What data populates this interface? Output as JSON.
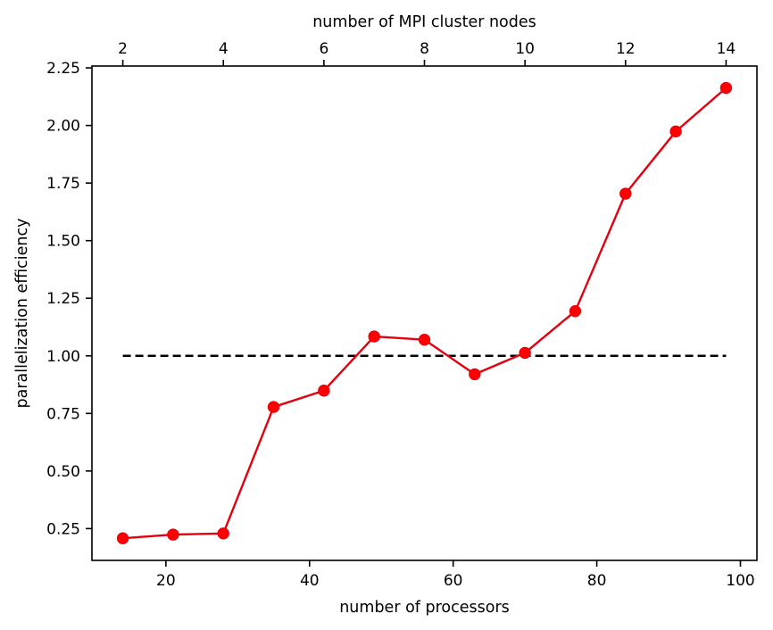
{
  "chart_data": {
    "type": "line",
    "title": "",
    "xlabel": "number of processors",
    "ylabel": "parallelization efficiency",
    "x2label": "number of MPI cluster nodes",
    "xlim": [
      9.7,
      102.3
    ],
    "ylim": [
      0.112,
      2.258
    ],
    "x_ticks": [
      20,
      40,
      60,
      80,
      100
    ],
    "x_tick_labels": [
      "20",
      "40",
      "60",
      "80",
      "100"
    ],
    "y_ticks": [
      0.25,
      0.5,
      0.75,
      1.0,
      1.25,
      1.5,
      1.75,
      2.0,
      2.25
    ],
    "y_tick_labels": [
      "0.25",
      "0.50",
      "0.75",
      "1.00",
      "1.25",
      "1.50",
      "1.75",
      "2.00",
      "2.25"
    ],
    "x2_ticks": [
      2,
      4,
      6,
      8,
      10,
      12,
      14
    ],
    "x2_tick_labels": [
      "2",
      "4",
      "6",
      "8",
      "10",
      "12",
      "14"
    ],
    "x2_to_x_factor": 7,
    "grid": false,
    "series": [
      {
        "x": [
          14,
          21,
          28,
          35,
          42,
          49,
          56,
          63,
          70,
          77,
          84,
          91,
          98
        ],
        "y": [
          0.208,
          0.224,
          0.229,
          0.778,
          0.849,
          1.084,
          1.07,
          0.92,
          1.013,
          1.194,
          1.704,
          1.974,
          2.163
        ],
        "color": "#e3000f",
        "marker": "circle",
        "line_style": "solid"
      },
      {
        "x": [
          14,
          98
        ],
        "y": [
          1.0,
          1.0
        ],
        "color": "#000000",
        "line_style": "dashed"
      }
    ]
  }
}
